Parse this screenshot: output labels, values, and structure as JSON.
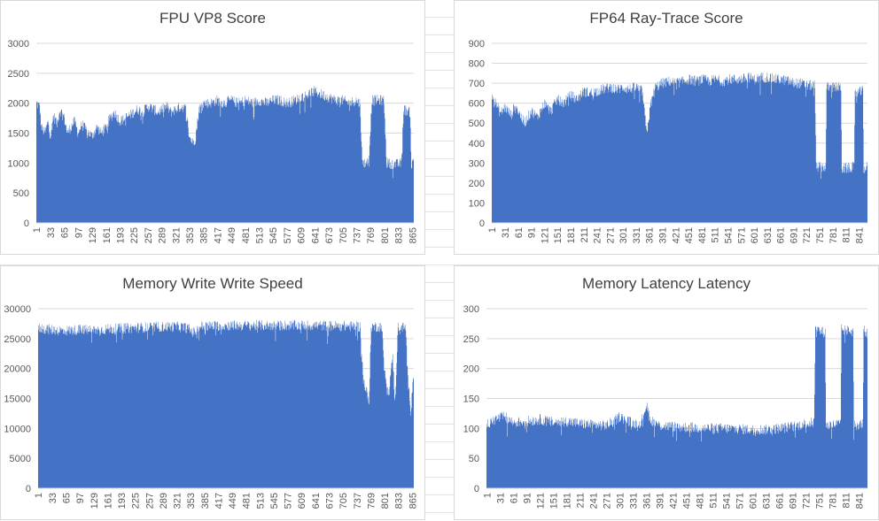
{
  "chart_data": [
    {
      "id": "fpu",
      "type": "bar",
      "title": "FPU VP8 Score",
      "xlabel": "",
      "ylabel": "",
      "ylim": [
        0,
        3000
      ],
      "yticks": [
        0,
        500,
        1000,
        1500,
        2000,
        2500,
        3000
      ],
      "x_count": 868,
      "xticks": [
        1,
        33,
        65,
        97,
        129,
        161,
        193,
        225,
        257,
        289,
        321,
        353,
        385,
        417,
        449,
        481,
        513,
        545,
        577,
        609,
        641,
        673,
        705,
        737,
        769,
        801,
        833,
        865
      ],
      "color": "#4472c4",
      "grid": true,
      "series": [
        {
          "profile": [
            [
              1,
              2000
            ],
            [
              8,
              1950
            ],
            [
              12,
              1600
            ],
            [
              20,
              1500
            ],
            [
              28,
              1700
            ],
            [
              33,
              1450
            ],
            [
              40,
              1800
            ],
            [
              48,
              1650
            ],
            [
              55,
              1900
            ],
            [
              65,
              1750
            ],
            [
              72,
              1500
            ],
            [
              80,
              1600
            ],
            [
              88,
              1700
            ],
            [
              97,
              1500
            ],
            [
              105,
              1650
            ],
            [
              115,
              1550
            ],
            [
              129,
              1450
            ],
            [
              140,
              1600
            ],
            [
              150,
              1500
            ],
            [
              161,
              1600
            ],
            [
              170,
              1750
            ],
            [
              180,
              1850
            ],
            [
              193,
              1700
            ],
            [
              205,
              1750
            ],
            [
              215,
              1800
            ],
            [
              225,
              1850
            ],
            [
              235,
              1900
            ],
            [
              245,
              1850
            ],
            [
              257,
              1950
            ],
            [
              270,
              1900
            ],
            [
              280,
              1850
            ],
            [
              289,
              1900
            ],
            [
              300,
              1950
            ],
            [
              310,
              1850
            ],
            [
              321,
              1900
            ],
            [
              335,
              1950
            ],
            [
              345,
              1900
            ],
            [
              352,
              1450
            ],
            [
              360,
              1350
            ],
            [
              366,
              1400
            ],
            [
              375,
              1900
            ],
            [
              385,
              2000
            ],
            [
              400,
              2000
            ],
            [
              417,
              2050
            ],
            [
              430,
              2000
            ],
            [
              449,
              2050
            ],
            [
              465,
              2000
            ],
            [
              481,
              2050
            ],
            [
              500,
              2000
            ],
            [
              513,
              2050
            ],
            [
              530,
              2000
            ],
            [
              545,
              2050
            ],
            [
              560,
              2050
            ],
            [
              577,
              2000
            ],
            [
              595,
              2050
            ],
            [
              609,
              2100
            ],
            [
              625,
              2150
            ],
            [
              641,
              2200
            ],
            [
              655,
              2150
            ],
            [
              673,
              2100
            ],
            [
              690,
              2050
            ],
            [
              705,
              2050
            ],
            [
              720,
              2000
            ],
            [
              735,
              2050
            ],
            [
              745,
              2000
            ],
            [
              750,
              1000
            ],
            [
              765,
              1020
            ],
            [
              772,
              2050
            ],
            [
              800,
              2050
            ],
            [
              806,
              1000
            ],
            [
              830,
              980
            ],
            [
              840,
              1000
            ],
            [
              845,
              1900
            ],
            [
              860,
              1850
            ],
            [
              863,
              950
            ],
            [
              868,
              1050
            ]
          ]
        }
      ]
    },
    {
      "id": "fp64",
      "type": "bar",
      "title": "FP64 Ray-Trace Score",
      "xlabel": "",
      "ylabel": "",
      "ylim": [
        0,
        900
      ],
      "yticks": [
        0,
        100,
        200,
        300,
        400,
        500,
        600,
        700,
        800,
        900
      ],
      "x_count": 860,
      "xticks": [
        1,
        31,
        61,
        91,
        121,
        151,
        181,
        211,
        241,
        271,
        301,
        331,
        361,
        391,
        421,
        451,
        481,
        511,
        541,
        571,
        601,
        631,
        661,
        691,
        721,
        751,
        781,
        811,
        841
      ],
      "color": "#4472c4",
      "grid": true,
      "series": [
        {
          "profile": [
            [
              1,
              640
            ],
            [
              10,
              600
            ],
            [
              20,
              550
            ],
            [
              31,
              580
            ],
            [
              45,
              540
            ],
            [
              55,
              600
            ],
            [
              61,
              560
            ],
            [
              75,
              500
            ],
            [
              91,
              560
            ],
            [
              105,
              530
            ],
            [
              121,
              600
            ],
            [
              135,
              560
            ],
            [
              151,
              620
            ],
            [
              165,
              600
            ],
            [
              181,
              640
            ],
            [
              195,
              620
            ],
            [
              211,
              660
            ],
            [
              225,
              650
            ],
            [
              241,
              660
            ],
            [
              255,
              670
            ],
            [
              271,
              680
            ],
            [
              290,
              670
            ],
            [
              301,
              680
            ],
            [
              315,
              670
            ],
            [
              331,
              680
            ],
            [
              345,
              660
            ],
            [
              355,
              450
            ],
            [
              365,
              600
            ],
            [
              375,
              680
            ],
            [
              391,
              700
            ],
            [
              410,
              710
            ],
            [
              421,
              700
            ],
            [
              440,
              710
            ],
            [
              451,
              720
            ],
            [
              470,
              710
            ],
            [
              481,
              720
            ],
            [
              500,
              710
            ],
            [
              511,
              720
            ],
            [
              530,
              710
            ],
            [
              541,
              720
            ],
            [
              560,
              720
            ],
            [
              571,
              720
            ],
            [
              590,
              730
            ],
            [
              601,
              720
            ],
            [
              620,
              730
            ],
            [
              631,
              730
            ],
            [
              650,
              720
            ],
            [
              661,
              720
            ],
            [
              680,
              710
            ],
            [
              691,
              700
            ],
            [
              705,
              700
            ],
            [
              720,
              690
            ],
            [
              740,
              690
            ],
            [
              743,
              280
            ],
            [
              765,
              280
            ],
            [
              767,
              680
            ],
            [
              800,
              680
            ],
            [
              802,
              270
            ],
            [
              830,
              280
            ],
            [
              832,
              650
            ],
            [
              850,
              660
            ],
            [
              852,
              270
            ],
            [
              860,
              280
            ]
          ]
        }
      ]
    },
    {
      "id": "memwrite",
      "type": "bar",
      "title": "Memory Write Write Speed",
      "xlabel": "",
      "ylabel": "",
      "ylim": [
        0,
        30000
      ],
      "yticks": [
        0,
        5000,
        10000,
        15000,
        20000,
        25000,
        30000
      ],
      "x_count": 868,
      "xticks": [
        1,
        33,
        65,
        97,
        129,
        161,
        193,
        225,
        257,
        289,
        321,
        353,
        385,
        417,
        449,
        481,
        513,
        545,
        577,
        609,
        641,
        673,
        705,
        737,
        769,
        801,
        833,
        865
      ],
      "color": "#4472c4",
      "grid": true,
      "series": [
        {
          "profile": [
            [
              1,
              26800
            ],
            [
              30,
              26500
            ],
            [
              60,
              26300
            ],
            [
              97,
              26500
            ],
            [
              129,
              26400
            ],
            [
              161,
              26600
            ],
            [
              193,
              26700
            ],
            [
              225,
              26800
            ],
            [
              257,
              26900
            ],
            [
              289,
              27000
            ],
            [
              321,
              27000
            ],
            [
              345,
              26800
            ],
            [
              360,
              26000
            ],
            [
              375,
              27000
            ],
            [
              385,
              27100
            ],
            [
              449,
              27200
            ],
            [
              513,
              27200
            ],
            [
              577,
              27200
            ],
            [
              641,
              27200
            ],
            [
              705,
              27100
            ],
            [
              745,
              27000
            ],
            [
              752,
              18000
            ],
            [
              760,
              16000
            ],
            [
              765,
              14000
            ],
            [
              770,
              27000
            ],
            [
              795,
              27000
            ],
            [
              800,
              20000
            ],
            [
              810,
              16000
            ],
            [
              820,
              22000
            ],
            [
              825,
              14000
            ],
            [
              832,
              27000
            ],
            [
              850,
              26800
            ],
            [
              855,
              18000
            ],
            [
              862,
              13000
            ],
            [
              868,
              20000
            ]
          ]
        }
      ]
    },
    {
      "id": "memlat",
      "type": "bar",
      "title": "Memory Latency Latency",
      "xlabel": "",
      "ylabel": "",
      "ylim": [
        0,
        300
      ],
      "yticks": [
        0,
        50,
        100,
        150,
        200,
        250,
        300
      ],
      "x_count": 860,
      "xticks": [
        1,
        31,
        61,
        91,
        121,
        151,
        181,
        211,
        241,
        271,
        301,
        331,
        361,
        391,
        421,
        451,
        481,
        511,
        541,
        571,
        601,
        631,
        661,
        691,
        721,
        751,
        781,
        811,
        841
      ],
      "color": "#4472c4",
      "grid": true,
      "series": [
        {
          "profile": [
            [
              1,
              105
            ],
            [
              20,
              115
            ],
            [
              40,
              120
            ],
            [
              60,
              110
            ],
            [
              91,
              112
            ],
            [
              121,
              115
            ],
            [
              151,
              110
            ],
            [
              181,
              112
            ],
            [
              211,
              108
            ],
            [
              241,
              106
            ],
            [
              271,
              105
            ],
            [
              290,
              112
            ],
            [
              301,
              120
            ],
            [
              315,
              115
            ],
            [
              331,
              108
            ],
            [
              350,
              110
            ],
            [
              361,
              140
            ],
            [
              370,
              115
            ],
            [
              391,
              105
            ],
            [
              421,
              103
            ],
            [
              451,
              102
            ],
            [
              481,
              101
            ],
            [
              511,
              100
            ],
            [
              541,
              100
            ],
            [
              571,
              99
            ],
            [
              601,
              98
            ],
            [
              631,
              98
            ],
            [
              661,
              100
            ],
            [
              691,
              103
            ],
            [
              721,
              108
            ],
            [
              740,
              110
            ],
            [
              743,
              265
            ],
            [
              765,
              260
            ],
            [
              767,
              105
            ],
            [
              800,
              108
            ],
            [
              802,
              265
            ],
            [
              828,
              262
            ],
            [
              830,
              105
            ],
            [
              850,
              108
            ],
            [
              852,
              265
            ],
            [
              860,
              258
            ]
          ]
        }
      ]
    }
  ]
}
